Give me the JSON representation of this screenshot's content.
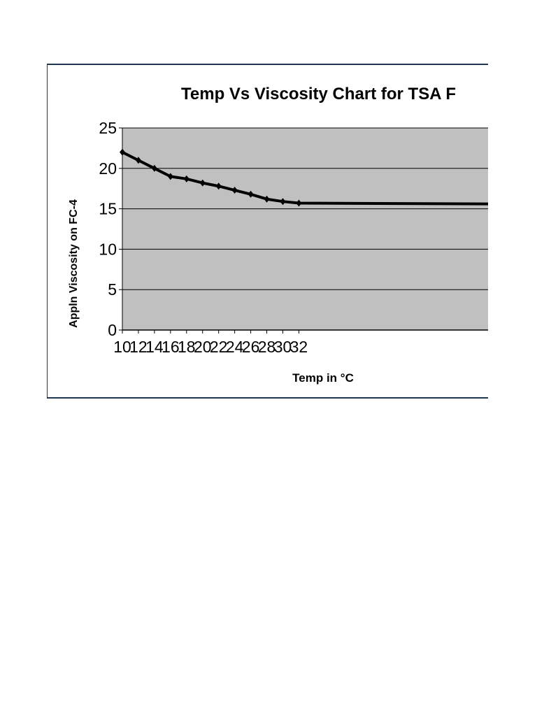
{
  "chart_data": {
    "type": "line",
    "title": "Temp Vs Viscosity Chart for TSA F",
    "xlabel": "Temp in °C",
    "ylabel": "Appln Viscosity on FC-4",
    "x": [
      10,
      12,
      14,
      16,
      18,
      20,
      22,
      24,
      26,
      28,
      30,
      32
    ],
    "series": [
      {
        "name": "Viscosity",
        "values": [
          22.0,
          21.0,
          20.0,
          19.0,
          18.7,
          18.2,
          17.8,
          17.3,
          16.8,
          16.2,
          15.9,
          15.7
        ]
      }
    ],
    "xlim": [
      10,
      33.7
    ],
    "ylim": [
      0,
      25
    ],
    "yticks": [
      0,
      5,
      10,
      15,
      20,
      25
    ],
    "xticks": [
      10,
      12,
      14,
      16,
      18,
      20,
      22,
      24,
      26,
      28,
      30,
      32
    ],
    "grid": true,
    "plot_background": "#c0c0c0",
    "line_color": "#000000",
    "legend": null
  }
}
